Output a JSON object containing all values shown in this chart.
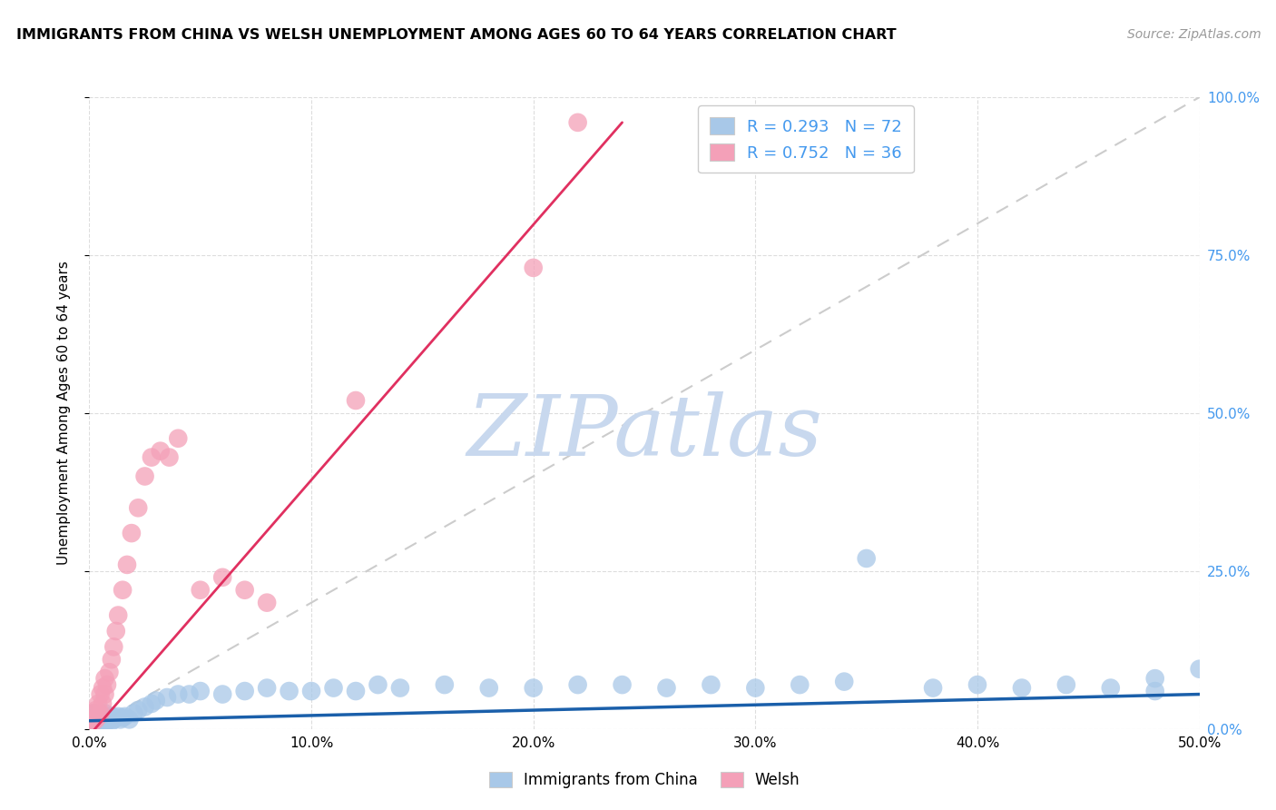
{
  "title": "IMMIGRANTS FROM CHINA VS WELSH UNEMPLOYMENT AMONG AGES 60 TO 64 YEARS CORRELATION CHART",
  "source": "Source: ZipAtlas.com",
  "ylabel": "Unemployment Among Ages 60 to 64 years",
  "xlim": [
    0.0,
    0.5
  ],
  "ylim": [
    0.0,
    1.0
  ],
  "color_blue": "#a8c8e8",
  "color_pink": "#f4a0b8",
  "color_line_blue": "#1a5faa",
  "color_line_pink": "#e03060",
  "color_diag": "#cccccc",
  "watermark": "ZIPatlas",
  "watermark_color": "#c8d8ee",
  "legend_r1": "R = 0.293",
  "legend_n1": "N = 72",
  "legend_r2": "R = 0.752",
  "legend_n2": "N = 36",
  "legend_label1": "Immigrants from China",
  "legend_label2": "Welsh",
  "blue_x": [
    0.001,
    0.001,
    0.001,
    0.002,
    0.002,
    0.002,
    0.002,
    0.003,
    0.003,
    0.003,
    0.003,
    0.004,
    0.004,
    0.004,
    0.005,
    0.005,
    0.005,
    0.006,
    0.006,
    0.007,
    0.007,
    0.007,
    0.008,
    0.008,
    0.009,
    0.009,
    0.01,
    0.01,
    0.011,
    0.012,
    0.013,
    0.014,
    0.015,
    0.016,
    0.018,
    0.02,
    0.022,
    0.025,
    0.028,
    0.03,
    0.035,
    0.04,
    0.045,
    0.05,
    0.06,
    0.07,
    0.08,
    0.09,
    0.1,
    0.11,
    0.12,
    0.13,
    0.14,
    0.16,
    0.18,
    0.2,
    0.22,
    0.24,
    0.26,
    0.28,
    0.3,
    0.32,
    0.34,
    0.38,
    0.4,
    0.42,
    0.44,
    0.46,
    0.48,
    0.5,
    0.48,
    0.35
  ],
  "blue_y": [
    0.01,
    0.02,
    0.015,
    0.008,
    0.018,
    0.012,
    0.025,
    0.01,
    0.02,
    0.015,
    0.005,
    0.012,
    0.018,
    0.008,
    0.015,
    0.022,
    0.01,
    0.012,
    0.02,
    0.015,
    0.01,
    0.025,
    0.012,
    0.018,
    0.015,
    0.02,
    0.012,
    0.02,
    0.015,
    0.018,
    0.02,
    0.015,
    0.018,
    0.02,
    0.015,
    0.025,
    0.03,
    0.035,
    0.04,
    0.045,
    0.05,
    0.055,
    0.055,
    0.06,
    0.055,
    0.06,
    0.065,
    0.06,
    0.06,
    0.065,
    0.06,
    0.07,
    0.065,
    0.07,
    0.065,
    0.065,
    0.07,
    0.07,
    0.065,
    0.07,
    0.065,
    0.07,
    0.075,
    0.065,
    0.07,
    0.065,
    0.07,
    0.065,
    0.06,
    0.095,
    0.08,
    0.27
  ],
  "pink_x": [
    0.001,
    0.001,
    0.002,
    0.002,
    0.003,
    0.003,
    0.004,
    0.004,
    0.005,
    0.005,
    0.006,
    0.006,
    0.007,
    0.007,
    0.008,
    0.009,
    0.01,
    0.011,
    0.012,
    0.013,
    0.015,
    0.017,
    0.019,
    0.022,
    0.025,
    0.028,
    0.032,
    0.036,
    0.04,
    0.05,
    0.06,
    0.07,
    0.08,
    0.12,
    0.2,
    0.22
  ],
  "pink_y": [
    0.008,
    0.015,
    0.012,
    0.025,
    0.015,
    0.03,
    0.02,
    0.04,
    0.025,
    0.055,
    0.04,
    0.065,
    0.055,
    0.08,
    0.07,
    0.09,
    0.11,
    0.13,
    0.155,
    0.18,
    0.22,
    0.26,
    0.31,
    0.35,
    0.4,
    0.43,
    0.44,
    0.43,
    0.46,
    0.22,
    0.24,
    0.22,
    0.2,
    0.52,
    0.73,
    0.96
  ],
  "blue_trend": [
    0.0,
    0.5,
    0.01,
    0.055
  ],
  "pink_trend": [
    0.0,
    0.22,
    -0.01,
    0.93
  ]
}
